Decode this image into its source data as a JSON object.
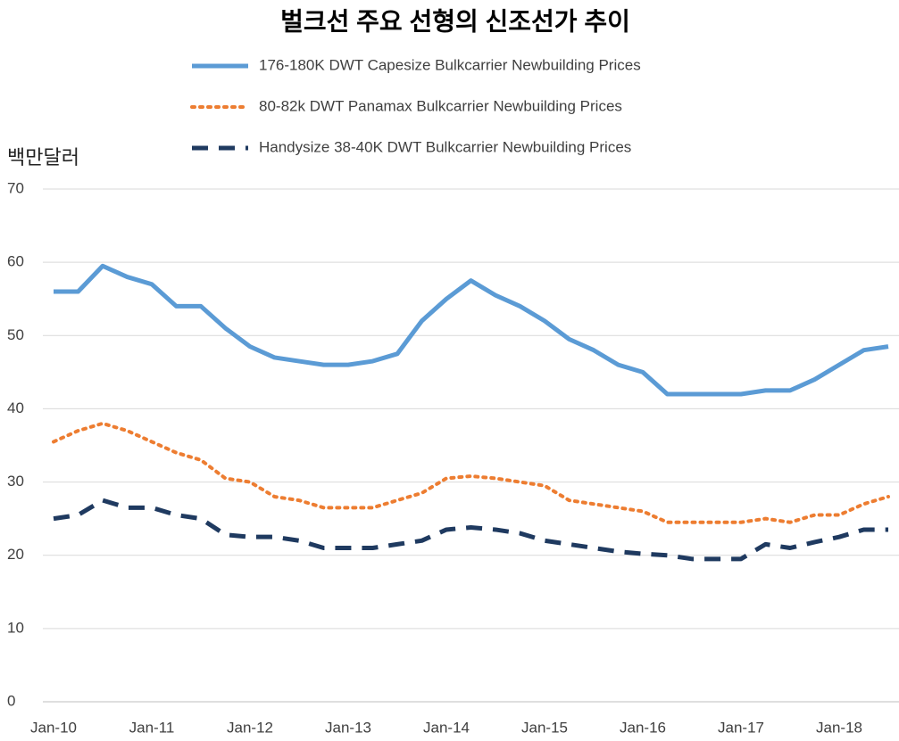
{
  "chart_data": {
    "type": "line",
    "title": "벌크선 주요 선형의 신조선가 추이",
    "y_label": "백만달러",
    "categories": [
      "Jan-10",
      null,
      null,
      null,
      "Jan-11",
      null,
      null,
      null,
      "Jan-12",
      null,
      null,
      null,
      "Jan-13",
      null,
      null,
      null,
      "Jan-14",
      null,
      null,
      null,
      "Jan-15",
      null,
      null,
      null,
      "Jan-16",
      null,
      null,
      null,
      "Jan-17",
      null,
      null,
      null,
      "Jan-18",
      null,
      null
    ],
    "series": [
      {
        "name": "176-180K DWT Capesize Bulkcarrier Newbuilding Prices",
        "color": "#5b9bd5",
        "dash": "solid",
        "values": [
          56,
          56,
          59.5,
          58,
          57,
          54,
          54,
          51,
          48.5,
          47,
          46.5,
          46,
          46,
          46.5,
          47.5,
          52,
          55,
          57.5,
          55.5,
          54,
          52,
          49.5,
          48,
          46,
          45,
          42,
          42,
          42,
          42,
          42.5,
          42.5,
          44,
          46,
          48,
          48.5
        ]
      },
      {
        "name": "80-82k DWT Panamax Bulkcarrier Newbuilding Prices",
        "color": "#ed7d31",
        "dash": "dotted",
        "values": [
          35.5,
          37,
          38,
          37,
          35.5,
          34,
          33,
          30.5,
          30,
          28,
          27.5,
          26.5,
          26.5,
          26.5,
          27.5,
          28.5,
          30.5,
          30.8,
          30.5,
          30,
          29.5,
          27.5,
          27,
          26.5,
          26,
          24.5,
          24.5,
          24.5,
          24.5,
          25,
          24.5,
          25.5,
          25.5,
          27,
          28
        ]
      },
      {
        "name": "Handysize 38-40K DWT  Bulkcarrier Newbuilding Prices",
        "color": "#1f3a60",
        "dash": "dashed",
        "values": [
          25,
          25.5,
          27.5,
          26.5,
          26.5,
          25.5,
          25,
          22.8,
          22.5,
          22.5,
          22,
          21,
          21,
          21,
          21.5,
          22,
          23.5,
          23.8,
          23.5,
          23,
          22,
          21.5,
          21,
          20.5,
          20.2,
          20,
          19.5,
          19.5,
          19.5,
          21.5,
          21,
          21.8,
          22.5,
          23.5,
          23.5
        ]
      }
    ],
    "ylim": [
      0,
      70
    ],
    "yticks": [
      0,
      10,
      20,
      30,
      40,
      50,
      60,
      70
    ],
    "grid": true
  }
}
